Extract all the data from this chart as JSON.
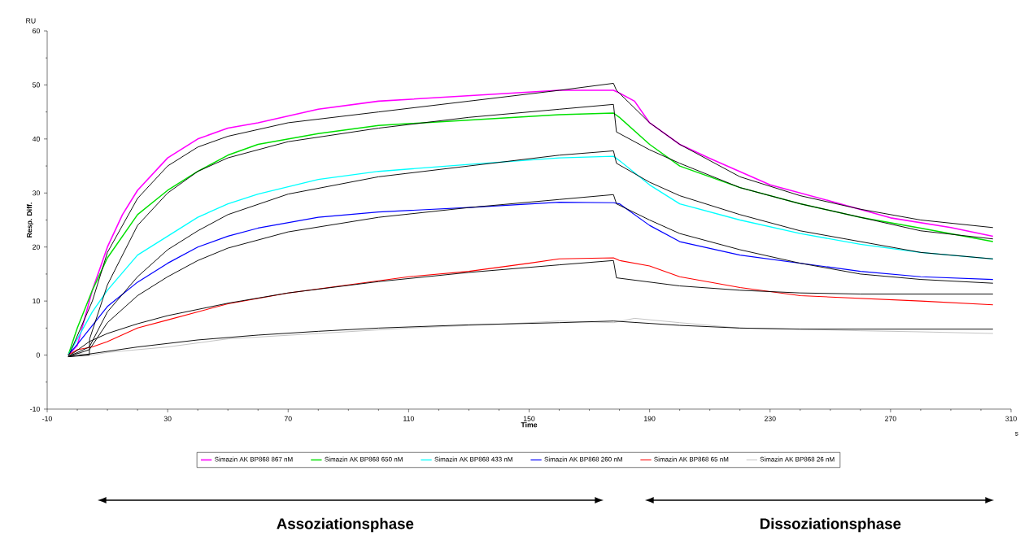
{
  "chart_data": {
    "type": "line",
    "xlabel": "Time",
    "ylabel": "Resp. Diff.",
    "annotations": [
      "RU",
      "s",
      "Assoziationsphase",
      "Dissoziationsphase"
    ],
    "xlim": [
      -10,
      310
    ],
    "xticks": [
      -10,
      30,
      70,
      110,
      150,
      190,
      230,
      270,
      310
    ],
    "ylim": [
      -10,
      60
    ],
    "yticks": [
      -10,
      0,
      10,
      20,
      30,
      40,
      50,
      60
    ],
    "grid": false,
    "legend": "bottom",
    "marker": "none",
    "line_style": "solid",
    "series": [
      {
        "name": "Simazin AK BP868 867 nM",
        "color": "#ff00ff",
        "x": [
          -3,
          0,
          5,
          10,
          15,
          20,
          30,
          40,
          50,
          60,
          80,
          100,
          130,
          160,
          178,
          180,
          185,
          190,
          200,
          210,
          230,
          250,
          270,
          290,
          304
        ],
        "values": [
          0,
          1.8,
          12,
          20,
          26,
          30.5,
          36.5,
          40,
          42,
          43,
          45.5,
          47,
          48,
          49,
          49,
          48.5,
          47,
          43,
          39,
          36.4,
          31.5,
          28.5,
          25.4,
          23.6,
          22
        ]
      },
      {
        "name": "Simazin AK BP868 650 nM",
        "color": "#00e000",
        "x": [
          -3,
          0,
          5,
          10,
          20,
          30,
          40,
          50,
          60,
          80,
          100,
          130,
          160,
          178,
          180,
          190,
          200,
          220,
          240,
          260,
          280,
          304
        ],
        "values": [
          0,
          5,
          12,
          18,
          26,
          30.5,
          34,
          37,
          39,
          41,
          42.5,
          43.5,
          44.5,
          44.8,
          44,
          39,
          35,
          31,
          28,
          25.5,
          23.5,
          21
        ]
      },
      {
        "name": "Simazin AK BP868 433 nM",
        "color": "#00ffff",
        "x": [
          -3,
          0,
          5,
          10,
          20,
          30,
          40,
          50,
          60,
          80,
          100,
          130,
          160,
          178,
          180,
          190,
          200,
          220,
          240,
          260,
          280,
          304
        ],
        "values": [
          0,
          3,
          8,
          12,
          18.5,
          22,
          25.5,
          28,
          29.8,
          32.5,
          34,
          35.3,
          36.5,
          36.8,
          36,
          31.5,
          28,
          25,
          22.5,
          20.5,
          19,
          17.8
        ]
      },
      {
        "name": "Simazin AK BP868 260 nM",
        "color": "#0000ff",
        "x": [
          -3,
          0,
          5,
          10,
          20,
          30,
          40,
          50,
          60,
          80,
          100,
          130,
          160,
          178,
          180,
          190,
          200,
          220,
          240,
          260,
          280,
          304
        ],
        "values": [
          0,
          2,
          5.5,
          9,
          13.5,
          17,
          20,
          22,
          23.5,
          25.5,
          26.5,
          27.3,
          28.3,
          28.2,
          28,
          24,
          21,
          18.5,
          17,
          15.5,
          14.5,
          14
        ]
      },
      {
        "name": "Simazin AK BP868 65 nM",
        "color": "#ff0000",
        "x": [
          -3,
          0,
          5,
          10,
          20,
          30,
          50,
          70,
          90,
          110,
          130,
          150,
          160,
          178,
          180,
          190,
          200,
          220,
          240,
          260,
          280,
          304
        ],
        "values": [
          0,
          1,
          1.5,
          2.5,
          5,
          6.5,
          9.5,
          11.5,
          13,
          14.5,
          15.5,
          17,
          17.8,
          18,
          17.5,
          16.5,
          14.5,
          12.5,
          11,
          10.5,
          10,
          9.3
        ]
      },
      {
        "name": "Simazin AK BP868 26 nM",
        "color": "#c0c0c0",
        "x": [
          -3,
          0,
          5,
          10,
          30,
          50,
          80,
          110,
          140,
          160,
          178,
          185,
          200,
          220,
          240,
          260,
          280,
          304
        ],
        "values": [
          0,
          0.3,
          0,
          0.5,
          1.5,
          3,
          4,
          5,
          5.7,
          6.3,
          6,
          6.8,
          6,
          5,
          4.8,
          4.5,
          4.3,
          4
        ]
      },
      {
        "color": "#000000",
        "x": [
          -3,
          5,
          10,
          20,
          30,
          40,
          50,
          70,
          100,
          130,
          160,
          178,
          179,
          190,
          200,
          220,
          240,
          260,
          280,
          304
        ],
        "values": [
          -0.3,
          10,
          19,
          29,
          35,
          38.5,
          40.5,
          43,
          45,
          47,
          49,
          50.3,
          49,
          43,
          39,
          33,
          29.5,
          27,
          25,
          23.6
        ]
      },
      {
        "color": "#000000",
        "x": [
          -3,
          4,
          4.1,
          10,
          20,
          30,
          40,
          50,
          70,
          100,
          130,
          160,
          178,
          179,
          190,
          200,
          220,
          240,
          260,
          280,
          304
        ],
        "values": [
          -0.3,
          0,
          3,
          13,
          24,
          30,
          34,
          36.5,
          39.5,
          42,
          44,
          45.5,
          46.4,
          41.3,
          38,
          35.5,
          31,
          28,
          25.5,
          23,
          21.5
        ]
      },
      {
        "color": "#000000",
        "x": [
          -3,
          4,
          10,
          20,
          30,
          40,
          50,
          70,
          100,
          130,
          160,
          178,
          179,
          190,
          200,
          220,
          240,
          260,
          280,
          304
        ],
        "values": [
          -0.3,
          1.5,
          8,
          14.5,
          19.5,
          23,
          26,
          29.8,
          33,
          35,
          37,
          37.8,
          35.5,
          32,
          29.5,
          26,
          23,
          21,
          19,
          17.8
        ]
      },
      {
        "color": "#000000",
        "x": [
          -3,
          4,
          10,
          20,
          30,
          40,
          50,
          70,
          100,
          130,
          160,
          178,
          179,
          190,
          200,
          220,
          240,
          260,
          280,
          304
        ],
        "values": [
          -0.3,
          1,
          6,
          11,
          14.5,
          17.5,
          19.8,
          22.8,
          25.5,
          27.3,
          28.8,
          29.7,
          28,
          25,
          22.5,
          19.5,
          17,
          15,
          14,
          13.3
        ]
      },
      {
        "color": "#000000",
        "x": [
          -3,
          4,
          10,
          20,
          30,
          50,
          70,
          100,
          130,
          160,
          178,
          179,
          200,
          220,
          240,
          260,
          304
        ],
        "values": [
          -0.3,
          2.5,
          4,
          5.8,
          7.3,
          9.6,
          11.5,
          13.6,
          15.3,
          16.7,
          17.5,
          14.3,
          12.8,
          12,
          11.5,
          11.3,
          11.3
        ]
      },
      {
        "color": "#000000",
        "x": [
          -3,
          4,
          20,
          40,
          60,
          80,
          100,
          130,
          160,
          178,
          200,
          220,
          240,
          270,
          304
        ],
        "values": [
          -0.3,
          0.2,
          1.5,
          2.8,
          3.7,
          4.4,
          5,
          5.6,
          6,
          6.3,
          5.5,
          5,
          4.8,
          4.8,
          4.8
        ]
      }
    ]
  }
}
